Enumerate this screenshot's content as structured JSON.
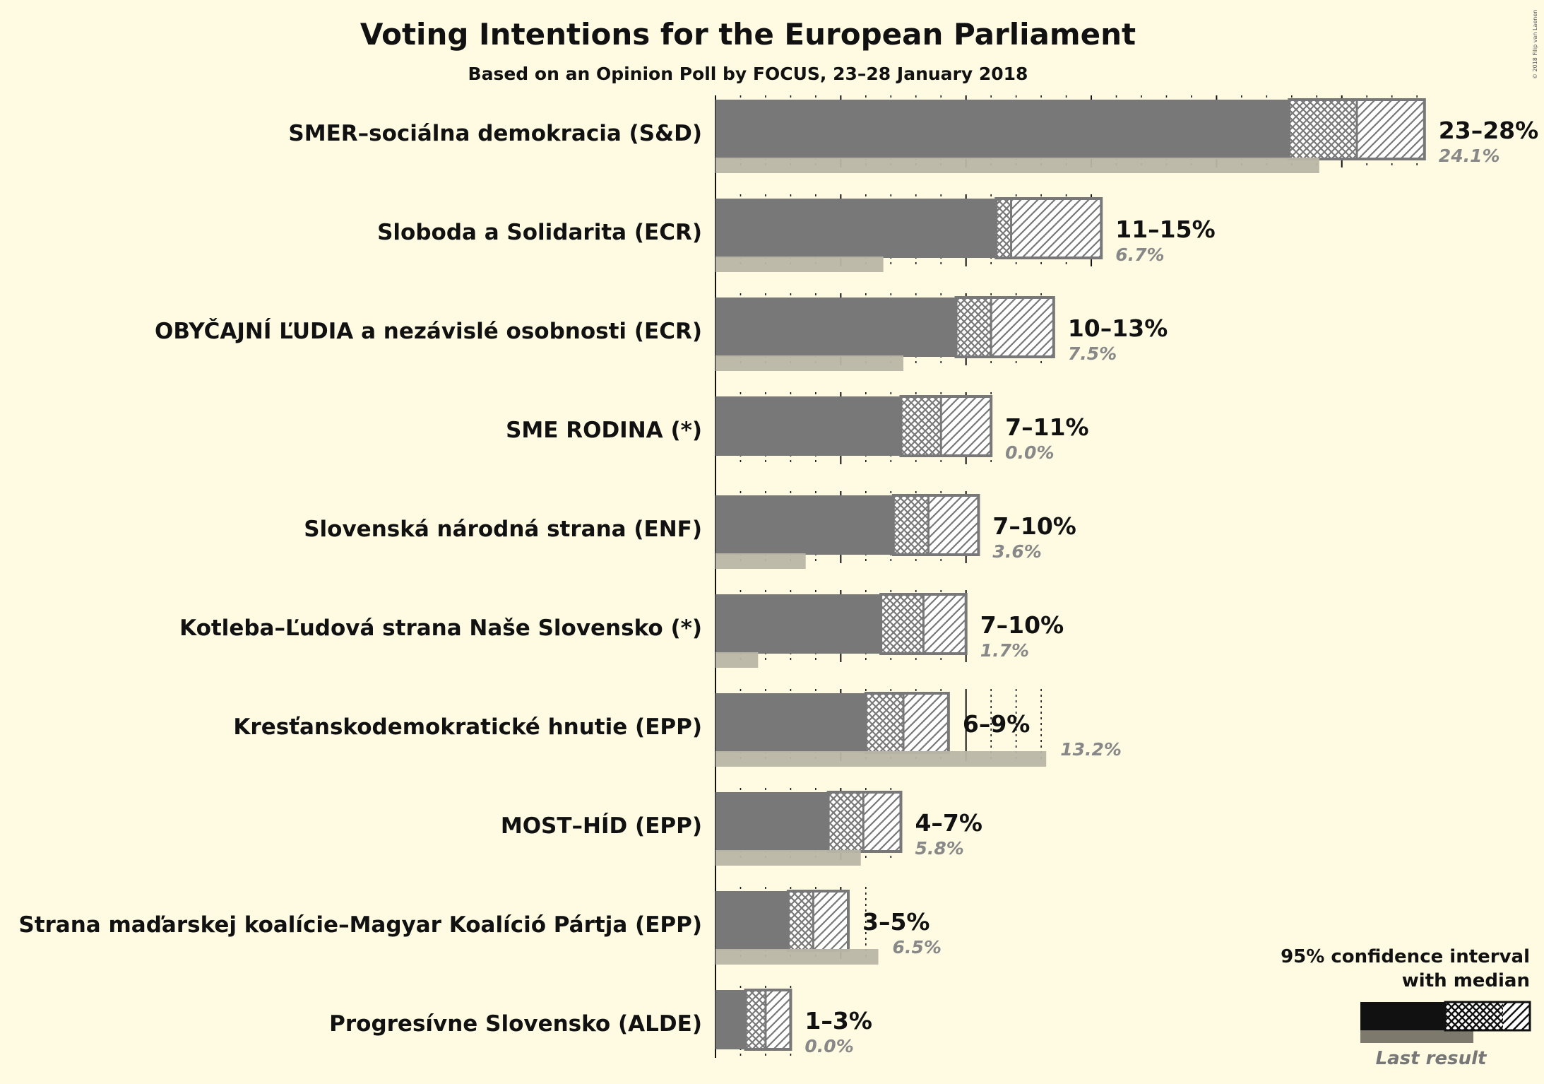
{
  "chart_data": {
    "type": "bar",
    "title": "Voting Intentions for the European Parliament",
    "subtitle": "Based on an Opinion Poll by FOCUS, 23–28 January 2018",
    "copyright": "© 2018 Filip van Laenen",
    "unit": "%",
    "categories": [
      "SMER–sociálna demokracia (S&D)",
      "Sloboda a Solidarita (ECR)",
      "OBYČAJNÍ ĽUDIA a nezávislé osobnosti (ECR)",
      "SME RODINA (*)",
      "Slovenská národná strana (ENF)",
      "Kotleba–Ľudová strana Naše Slovensko (*)",
      "Kresťanskodemokratické hnutie (EPP)",
      "MOST–HÍD (EPP)",
      "Strana maďarskej koalície–Magyar Koalíció Pártja (EPP)",
      "Progresívne Slovensko (ALDE)"
    ],
    "ci_labels": [
      "23–28%",
      "11–15%",
      "10–13%",
      "7–11%",
      "7–10%",
      "7–10%",
      "6–9%",
      "4–7%",
      "3–5%",
      "1–3%"
    ],
    "last_result_labels": [
      "24.1%",
      "6.7%",
      "7.5%",
      "0.0%",
      "3.6%",
      "1.7%",
      "13.2%",
      "5.8%",
      "6.5%",
      "0.0%"
    ],
    "series": [
      {
        "name": "95% confidence interval with median",
        "ci_low": [
          22.9,
          11.2,
          9.6,
          7.4,
          7.1,
          6.6,
          6.0,
          4.5,
          2.9,
          1.2
        ],
        "median": [
          25.6,
          11.8,
          11.0,
          9.0,
          8.5,
          8.3,
          7.5,
          5.9,
          3.9,
          2.0
        ],
        "ci_high": [
          28.3,
          15.4,
          13.5,
          11.0,
          10.5,
          10.0,
          9.3,
          7.4,
          5.3,
          3.0
        ]
      },
      {
        "name": "Last result",
        "values": [
          24.1,
          6.7,
          7.5,
          0.0,
          3.6,
          1.7,
          13.2,
          5.8,
          6.5,
          0.0
        ]
      }
    ],
    "xlim": [
      0,
      28.5
    ],
    "major_ticks": [
      0,
      5,
      10,
      15,
      20,
      25
    ],
    "minor_tick_step": 1,
    "legend": {
      "title_line1": "95% confidence interval",
      "title_line2": "with median",
      "last_label": "Last result",
      "position": "bottom-right"
    },
    "colors": {
      "background": "#fffbe3",
      "bar": "#787878",
      "last_result": "#b9b6a6",
      "hatch_stroke": "#787878",
      "legend_bar": "#111111",
      "legend_last": "#7d7a6d"
    }
  }
}
